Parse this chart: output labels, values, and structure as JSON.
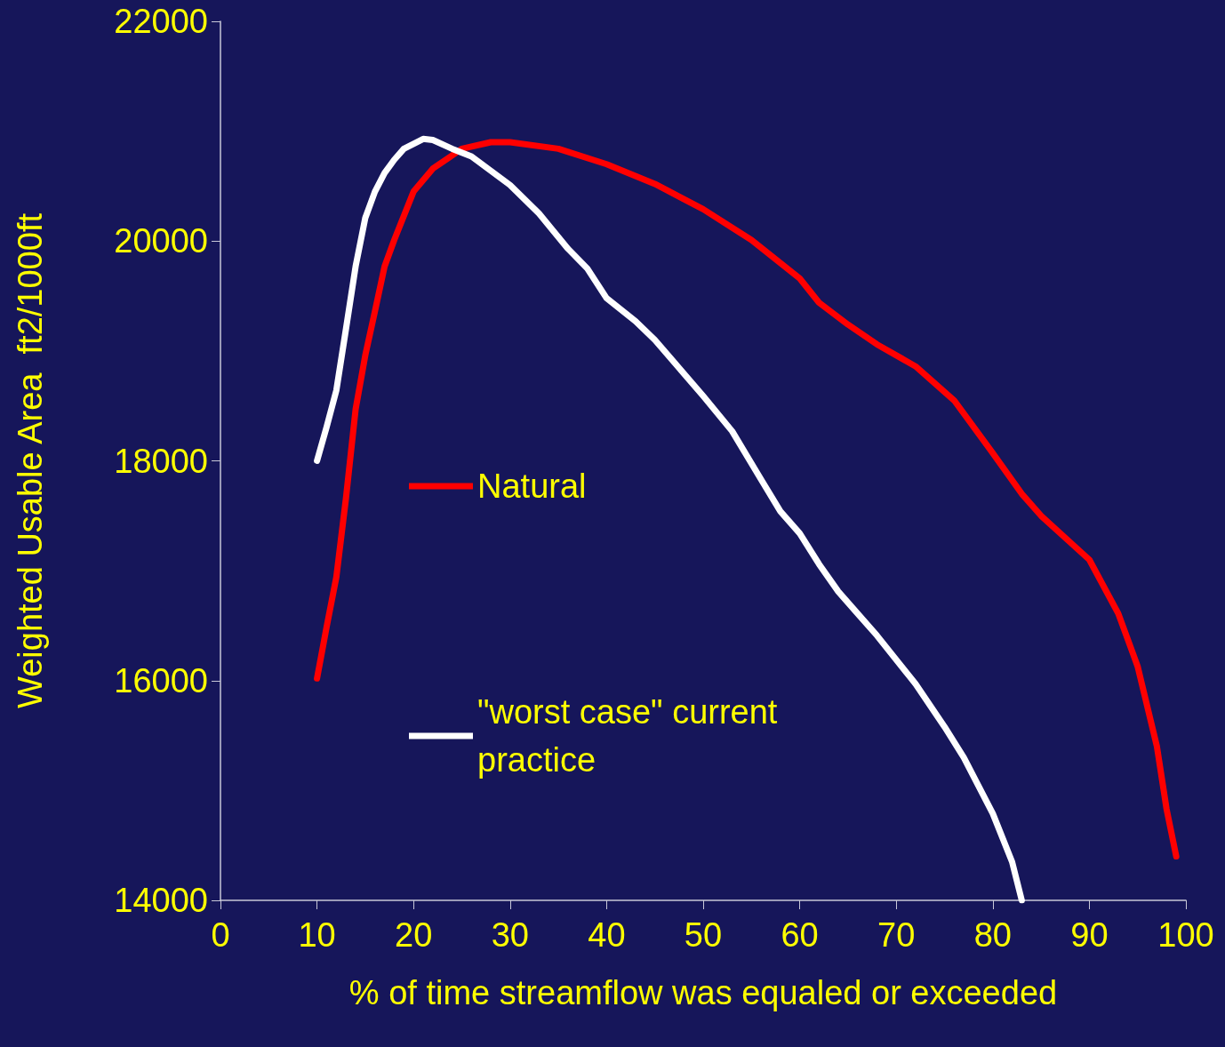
{
  "chart_data": {
    "type": "line",
    "xlabel": "% of time streamflow was equaled or exceeded",
    "ylabel": "Weighted Usable Area  ft2/1000ft",
    "xlim": [
      0,
      100
    ],
    "xticks": [
      0,
      10,
      20,
      30,
      40,
      50,
      60,
      70,
      80,
      90,
      100
    ],
    "ylim": [
      14000,
      22000
    ],
    "yticks": [
      14000,
      16000,
      18000,
      20000,
      22000
    ],
    "grid": false,
    "legend": "left",
    "marker": "none",
    "line_style": "solid",
    "series": [
      {
        "name": "Natural",
        "color": "#ff0000",
        "x": [
          10,
          11,
          12,
          13,
          14,
          15,
          16,
          17,
          18,
          20,
          22,
          25,
          28,
          30,
          35,
          40,
          45,
          50,
          55,
          60,
          62,
          65,
          68,
          72,
          76,
          80,
          83,
          85,
          88,
          90,
          93,
          95,
          97,
          98,
          99
        ],
        "values": [
          16020,
          16490,
          16940,
          17660,
          18470,
          18960,
          19360,
          19770,
          20010,
          20450,
          20660,
          20840,
          20900,
          20900,
          20840,
          20700,
          20520,
          20290,
          20010,
          19660,
          19440,
          19240,
          19060,
          18860,
          18550,
          18070,
          17700,
          17500,
          17260,
          17100,
          16610,
          16130,
          15400,
          14830,
          14400
        ]
      },
      {
        "name": "\"worst case\" current practice",
        "color": "#ffffff",
        "x": [
          10,
          11,
          12,
          13,
          14,
          15,
          16,
          17,
          18,
          19,
          21,
          22,
          24,
          26,
          30,
          33,
          36,
          38,
          40,
          43,
          45,
          50,
          53,
          56,
          58,
          60,
          62,
          64,
          66,
          68,
          72,
          75,
          77,
          80,
          82,
          83
        ],
        "values": [
          18000,
          18310,
          18640,
          19200,
          19770,
          20210,
          20450,
          20620,
          20740,
          20840,
          20930,
          20920,
          20840,
          20770,
          20510,
          20250,
          19930,
          19750,
          19480,
          19270,
          19100,
          18590,
          18270,
          17830,
          17540,
          17340,
          17060,
          16810,
          16610,
          16410,
          15970,
          15580,
          15300,
          14790,
          14350,
          14000
        ]
      }
    ]
  }
}
